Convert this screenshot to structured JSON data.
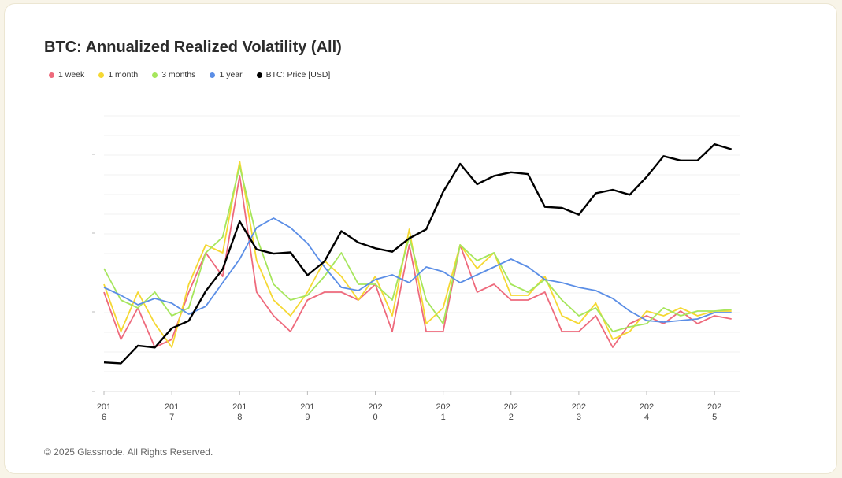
{
  "chart_data": {
    "type": "line",
    "title": "BTC: Annualized Realized Volatility (All)",
    "footer": "© 2025 Glassnode. All Rights Reserved.",
    "x": [
      2016,
      2016.25,
      2016.5,
      2016.75,
      2017,
      2017.25,
      2017.5,
      2017.75,
      2018,
      2018.25,
      2018.5,
      2018.75,
      2019,
      2019.25,
      2019.5,
      2019.75,
      2020,
      2020.25,
      2020.5,
      2020.75,
      2021,
      2021.25,
      2021.5,
      2021.75,
      2022,
      2022.25,
      2022.5,
      2022.75,
      2023,
      2023.25,
      2023.5,
      2023.75,
      2024,
      2024.25,
      2024.5,
      2024.75,
      2025,
      2025.25
    ],
    "xlim": [
      2016,
      2025.37
    ],
    "xticks": [
      2016,
      2017,
      2018,
      2019,
      2020,
      2021,
      2022,
      2023,
      2024,
      2025
    ],
    "ylim": [
      0,
      175
    ],
    "y2lim": [
      210,
      190000
    ],
    "y2scale": "log",
    "series": [
      {
        "name": "1 week",
        "color": "#ee6a7c",
        "values": [
          63,
          33,
          53,
          28,
          33,
          63,
          88,
          73,
          137,
          63,
          48,
          38,
          58,
          63,
          63,
          58,
          68,
          38,
          93,
          38,
          38,
          93,
          63,
          68,
          58,
          58,
          63,
          38,
          38,
          48,
          28,
          43,
          48,
          43,
          51,
          43,
          48,
          46
        ]
      },
      {
        "name": "1 month",
        "color": "#f5d833",
        "values": [
          68,
          38,
          63,
          43,
          28,
          68,
          93,
          88,
          146,
          83,
          58,
          48,
          63,
          83,
          73,
          58,
          73,
          48,
          103,
          43,
          53,
          93,
          78,
          88,
          61,
          61,
          73,
          48,
          43,
          56,
          33,
          38,
          51,
          48,
          53,
          48,
          51,
          51
        ]
      },
      {
        "name": "3 months",
        "color": "#a6e65c",
        "values": [
          78,
          58,
          53,
          63,
          48,
          53,
          88,
          98,
          143,
          98,
          68,
          58,
          61,
          73,
          88,
          68,
          68,
          58,
          98,
          58,
          43,
          93,
          83,
          88,
          68,
          63,
          71,
          58,
          48,
          53,
          38,
          41,
          43,
          53,
          48,
          51,
          51,
          52
        ]
      },
      {
        "name": "1 year",
        "color": "#5b8ee6",
        "values": [
          66,
          61,
          55,
          59,
          56,
          49,
          54,
          69,
          84,
          104,
          110,
          104,
          94,
          79,
          66,
          64,
          71,
          74,
          69,
          79,
          76,
          69,
          74,
          79,
          84,
          79,
          71,
          69,
          66,
          64,
          59,
          51,
          45,
          44,
          45,
          46,
          50,
          50
        ]
      },
      {
        "name": "BTC: Price [USD]",
        "color": "#000000",
        "axis": "y2",
        "values": [
          430,
          420,
          650,
          620,
          1000,
          1200,
          2500,
          4300,
          14000,
          7000,
          6300,
          6500,
          3700,
          5200,
          11000,
          8300,
          7200,
          6600,
          9200,
          11500,
          29000,
          58000,
          35000,
          43000,
          47000,
          45000,
          20000,
          19500,
          16500,
          28000,
          30500,
          27000,
          42000,
          70000,
          63000,
          63000,
          94000,
          83000
        ]
      }
    ]
  }
}
